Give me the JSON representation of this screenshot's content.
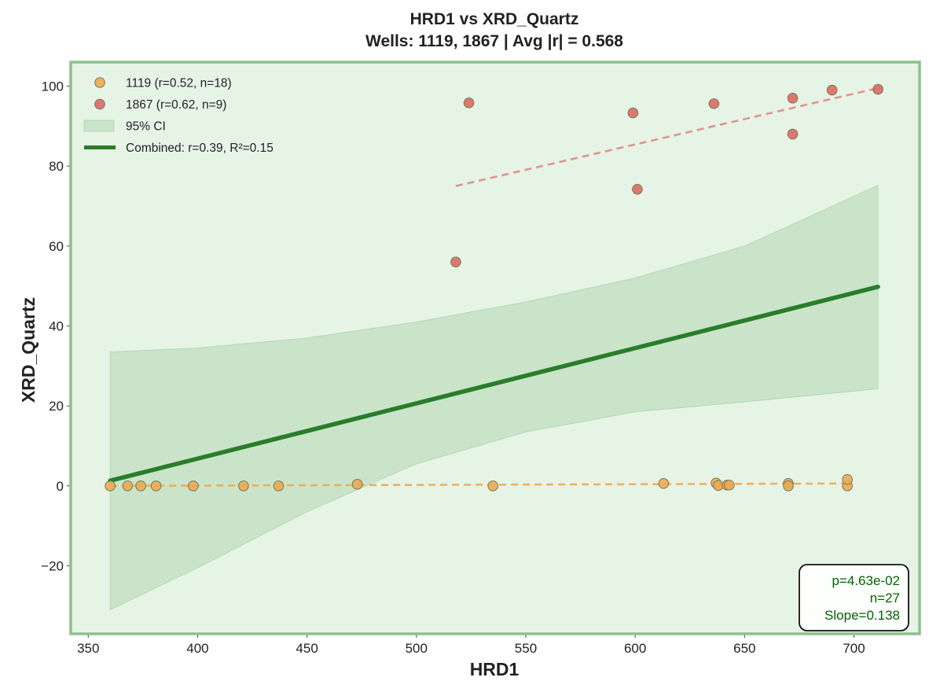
{
  "chart_data": {
    "type": "scatter",
    "title": "HRD1 vs XRD_Quartz",
    "subtitle": "Wells: 1119, 1867 | Avg |r| = 0.568",
    "xlabel": "HRD1",
    "ylabel": "XRD_Quartz",
    "xlim": [
      342,
      730
    ],
    "ylim": [
      -37,
      106
    ],
    "xticks": [
      350,
      400,
      450,
      500,
      550,
      600,
      650,
      700
    ],
    "yticks": [
      -20,
      0,
      20,
      40,
      60,
      80,
      100
    ],
    "xtick_labels": [
      "350",
      "400",
      "450",
      "500",
      "550",
      "600",
      "650",
      "700"
    ],
    "ytick_labels": [
      "−20",
      "0",
      "20",
      "40",
      "60",
      "80",
      "100"
    ],
    "grid": false,
    "background": "#e6f4e6",
    "frame_color": "#8fbf8f",
    "legend_position": "top-left",
    "series": [
      {
        "name": "1119 (r=0.52, n=18)",
        "color": "#f0a850",
        "points": [
          [
            360,
            0.0
          ],
          [
            368,
            0.0
          ],
          [
            374,
            0.0
          ],
          [
            381,
            0.0
          ],
          [
            398,
            0.0
          ],
          [
            421,
            0.0
          ],
          [
            437,
            0.0
          ],
          [
            473,
            0.4
          ],
          [
            535,
            0.0
          ],
          [
            613,
            0.6
          ],
          [
            637,
            0.7
          ],
          [
            638,
            0.1
          ],
          [
            642,
            0.2
          ],
          [
            643,
            0.2
          ],
          [
            670,
            0.6
          ],
          [
            670,
            0.0
          ],
          [
            697,
            0.0
          ],
          [
            697,
            1.6
          ]
        ],
        "fit": {
          "x": [
            360,
            697
          ],
          "y": [
            0.0,
            0.6
          ],
          "color": "#f0a850"
        }
      },
      {
        "name": "1867 (r=0.62, n=9)",
        "color": "#e06860",
        "points": [
          [
            518,
            56
          ],
          [
            524,
            95.8
          ],
          [
            599,
            93.3
          ],
          [
            601,
            74.2
          ],
          [
            636,
            95.6
          ],
          [
            672,
            97
          ],
          [
            672,
            88
          ],
          [
            690,
            99
          ],
          [
            711,
            99.2
          ]
        ],
        "fit": {
          "x": [
            518,
            711
          ],
          "y": [
            75,
            99.5
          ],
          "color": "#e08a80"
        }
      }
    ],
    "combined_fit": {
      "name": "Combined: r=0.39, R²=0.15",
      "color": "#2a7d2a",
      "x": [
        360,
        711
      ],
      "y": [
        1.3,
        49.8
      ]
    },
    "confidence_band": {
      "name": "95% CI",
      "color": "#a8d0a8",
      "x": [
        360,
        400,
        450,
        500,
        550,
        600,
        650,
        711
      ],
      "upper": [
        33.5,
        34.5,
        37,
        41,
        46,
        52,
        60,
        75.2
      ],
      "lower": [
        -31,
        -20.5,
        -6.5,
        5.5,
        13.5,
        18.5,
        21,
        24.3
      ]
    },
    "stats_box": {
      "lines": [
        "p=4.63e-02",
        "n=27",
        "Slope=0.138"
      ],
      "position": "bottom-right",
      "text_color": "#006400"
    }
  }
}
